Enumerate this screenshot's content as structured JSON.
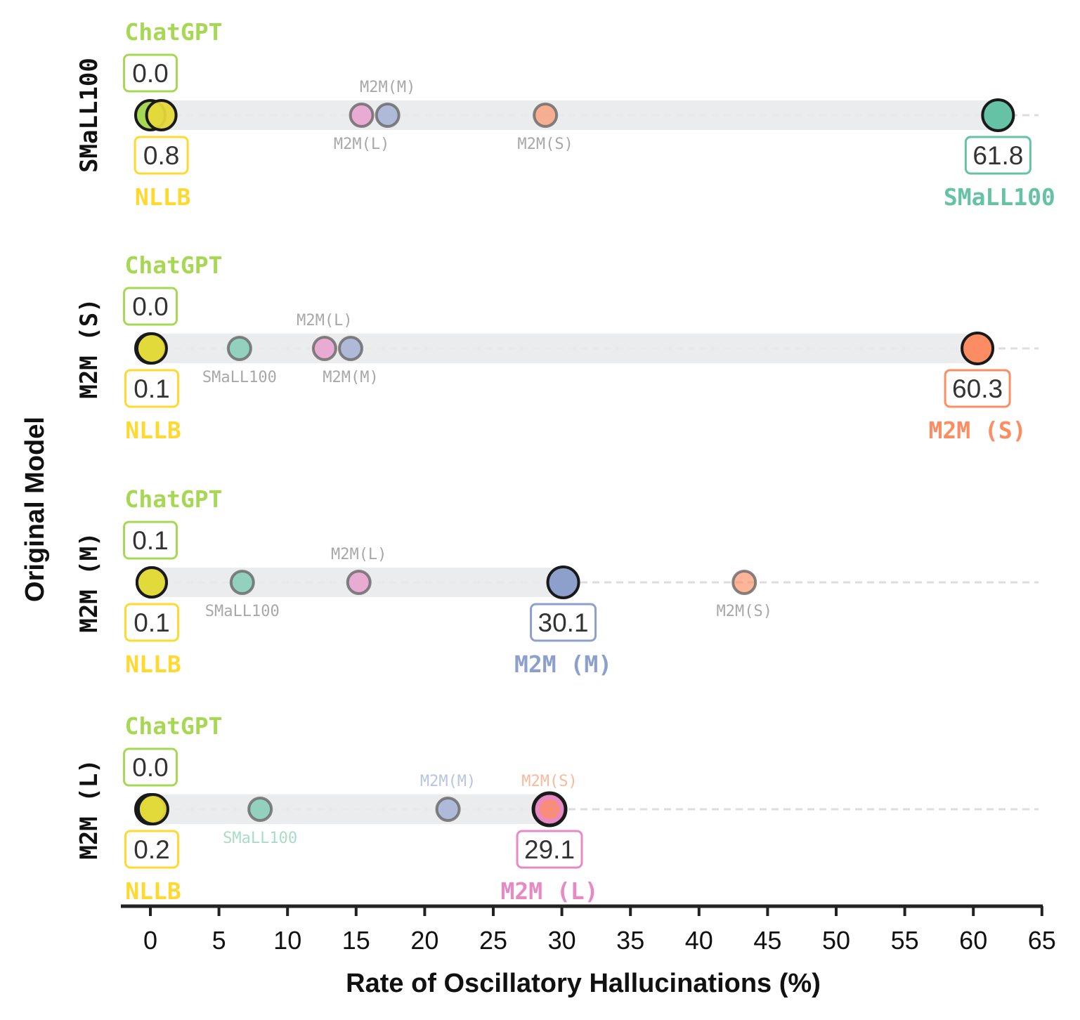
{
  "chart_data": {
    "type": "scatter",
    "xlabel": "Rate of Oscillatory Hallucinations (%)",
    "ylabel": "Original Model",
    "xlim": [
      -2,
      65
    ],
    "xticks": [
      0,
      5,
      10,
      15,
      20,
      25,
      30,
      35,
      40,
      45,
      50,
      55,
      60,
      65
    ],
    "xtick_labels": [
      "0",
      "5",
      "10",
      "15",
      "20",
      "25",
      "30",
      "35",
      "40",
      "45",
      "50",
      "55",
      "60",
      "65"
    ],
    "colors": {
      "ChatGPT": "#a6d854",
      "NLLB": "#ffd92f",
      "NLLB_fill": "#e5d93a",
      "SMaLL100": "#66c2a5",
      "M2M(S)": "#fc8d62",
      "M2M(M)": "#8da0cb",
      "M2M(L)": "#e78ac3",
      "others_label": "#a8a8a8"
    },
    "rows": [
      {
        "name": "SMaLL100",
        "original_color": "#66c2a5",
        "chatgpt": {
          "label": "ChatGPT",
          "value": 0.0,
          "display": "0.0"
        },
        "nllb": {
          "label": "NLLB",
          "value": 0.8,
          "display": "0.8"
        },
        "self": {
          "label": "SMaLL100",
          "value": 61.8,
          "display": "61.8"
        },
        "others": [
          {
            "label": "M2M(L)",
            "value": 15.4,
            "color": "#e78ac3",
            "label_pos": "below",
            "label_color": "#a8a8a8"
          },
          {
            "label": "M2M(M)",
            "value": 17.3,
            "color": "#8da0cb",
            "label_pos": "above",
            "label_color": "#a8a8a8"
          },
          {
            "label": "M2M(S)",
            "value": 28.8,
            "color": "#fc8d62",
            "label_pos": "below",
            "label_color": "#a8a8a8"
          }
        ]
      },
      {
        "name": "M2M (S)",
        "original_color": "#fc8d62",
        "chatgpt": {
          "label": "ChatGPT",
          "value": 0.0,
          "display": "0.0"
        },
        "nllb": {
          "label": "NLLB",
          "value": 0.1,
          "display": "0.1"
        },
        "self": {
          "label": "M2M (S)",
          "value": 60.3,
          "display": "60.3"
        },
        "others": [
          {
            "label": "SMaLL100",
            "value": 6.5,
            "color": "#66c2a5",
            "label_pos": "below",
            "label_color": "#a8a8a8"
          },
          {
            "label": "M2M(L)",
            "value": 12.7,
            "color": "#e78ac3",
            "label_pos": "above",
            "label_color": "#a8a8a8"
          },
          {
            "label": "M2M(M)",
            "value": 14.6,
            "color": "#8da0cb",
            "label_pos": "below",
            "label_color": "#a8a8a8"
          }
        ]
      },
      {
        "name": "M2M (M)",
        "original_color": "#8da0cb",
        "chatgpt": {
          "label": "ChatGPT",
          "value": 0.1,
          "display": "0.1"
        },
        "nllb": {
          "label": "NLLB",
          "value": 0.1,
          "display": "0.1"
        },
        "self": {
          "label": "M2M (M)",
          "value": 30.1,
          "display": "30.1"
        },
        "others": [
          {
            "label": "SMaLL100",
            "value": 6.7,
            "color": "#66c2a5",
            "label_pos": "below",
            "label_color": "#a8a8a8"
          },
          {
            "label": "M2M(L)",
            "value": 15.2,
            "color": "#e78ac3",
            "label_pos": "above",
            "label_color": "#a8a8a8"
          },
          {
            "label": "M2M(S)",
            "value": 43.3,
            "color": "#fc8d62",
            "label_pos": "below",
            "label_color": "#a8a8a8"
          }
        ]
      },
      {
        "name": "M2M (L)",
        "original_color": "#e78ac3",
        "chatgpt": {
          "label": "ChatGPT",
          "value": 0.0,
          "display": "0.0"
        },
        "nllb": {
          "label": "NLLB",
          "value": 0.2,
          "display": "0.2"
        },
        "self": {
          "label": "M2M (L)",
          "value": 29.1,
          "display": "29.1"
        },
        "others": [
          {
            "label": "SMaLL100",
            "value": 8.0,
            "color": "#66c2a5",
            "label_pos": "below",
            "label_color": "#a8dcc9"
          },
          {
            "label": "M2M(M)",
            "value": 21.7,
            "color": "#8da0cb",
            "label_pos": "above",
            "label_color": "#b9c4e0"
          },
          {
            "label": "M2M(S)",
            "value": 29.1,
            "color": "#fc8d62",
            "label_pos": "above",
            "label_color": "#fdb89c"
          }
        ]
      }
    ]
  }
}
